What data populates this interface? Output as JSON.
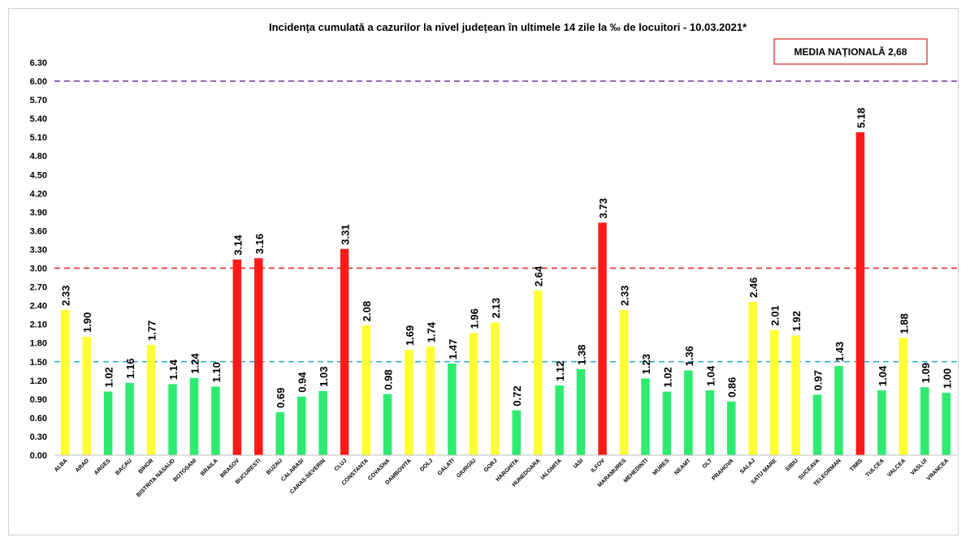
{
  "chart_data": {
    "type": "bar",
    "title": "Incidența cumulată a cazurilor la nivel județean în ultimele 14 zile la ‰ de locuitori - 10.03.2021*",
    "xlabel": "",
    "ylabel": "",
    "ylim": [
      0,
      6.3
    ],
    "yticks": [
      "0.00",
      "0.30",
      "0.60",
      "0.90",
      "1.20",
      "1.50",
      "1.80",
      "2.10",
      "2.40",
      "2.70",
      "3.00",
      "3.30",
      "3.60",
      "3.90",
      "4.20",
      "4.50",
      "4.80",
      "5.10",
      "5.40",
      "5.70",
      "6.00",
      "6.30"
    ],
    "grid": false,
    "categories": [
      "ALBA",
      "ARAD",
      "ARGES",
      "BACAU",
      "BIHOR",
      "BISTRITA NASAUD",
      "BOTOSANI",
      "BRAILA",
      "BRASOV",
      "BUCURESTI",
      "BUZAU",
      "CALARASI",
      "CARAS-SEVERIN",
      "CLUJ",
      "CONSTANTA",
      "COVASNA",
      "DAMBOVITA",
      "DOLJ",
      "GALATI",
      "GIURGIU",
      "GORJ",
      "HARGHITA",
      "HUNEDOARA",
      "IALOMITA",
      "IASI",
      "ILFOV",
      "MARAMURES",
      "MEHEDINTI",
      "MURES",
      "NEAMT",
      "OLT",
      "PRAHOVA",
      "SALAJ",
      "SATU MARE",
      "SIBIU",
      "SUCEAVA",
      "TELEORMAN",
      "TIMIS",
      "TULCEA",
      "VALCEA",
      "VASLUI",
      "VRANCEA"
    ],
    "values": [
      2.33,
      1.9,
      1.02,
      1.16,
      1.77,
      1.14,
      1.24,
      1.1,
      3.14,
      3.16,
      0.69,
      0.94,
      1.03,
      3.31,
      2.08,
      0.98,
      1.69,
      1.74,
      1.47,
      1.96,
      2.13,
      0.72,
      2.64,
      1.12,
      1.38,
      3.73,
      2.33,
      1.23,
      1.02,
      1.36,
      1.04,
      0.86,
      2.46,
      2.01,
      1.92,
      0.97,
      1.43,
      5.18,
      1.04,
      1.88,
      1.09,
      1.0
    ],
    "value_labels": [
      "2.33",
      "1.90",
      "1.02",
      "1.16",
      "1.77",
      "1.14",
      "1.24",
      "1.10",
      "3.14",
      "3.16",
      "0.69",
      "0.94",
      "1.03",
      "3.31",
      "2.08",
      "0.98",
      "1.69",
      "1.74",
      "1.47",
      "1.96",
      "2.13",
      "0.72",
      "2.64",
      "1.12",
      "1.38",
      "3.73",
      "2.33",
      "1.23",
      "1.02",
      "1.36",
      "1.04",
      "0.86",
      "2.46",
      "2.01",
      "1.92",
      "0.97",
      "1.43",
      "5.18",
      "1.04",
      "1.88",
      "1.09",
      "1.00"
    ],
    "thresholds": [
      {
        "value": 6.0,
        "color": "#7030a0"
      },
      {
        "value": 3.0,
        "color": "#e02020"
      },
      {
        "value": 1.5,
        "color": "#22aadd"
      }
    ],
    "colors": {
      "red": "#ff1a1a",
      "yellow": "#ffff33",
      "green": "#2eeb70"
    },
    "annotation": "MEDIA NAȚIONALĂ  2,68",
    "annotation_border_color": "#e02020"
  }
}
